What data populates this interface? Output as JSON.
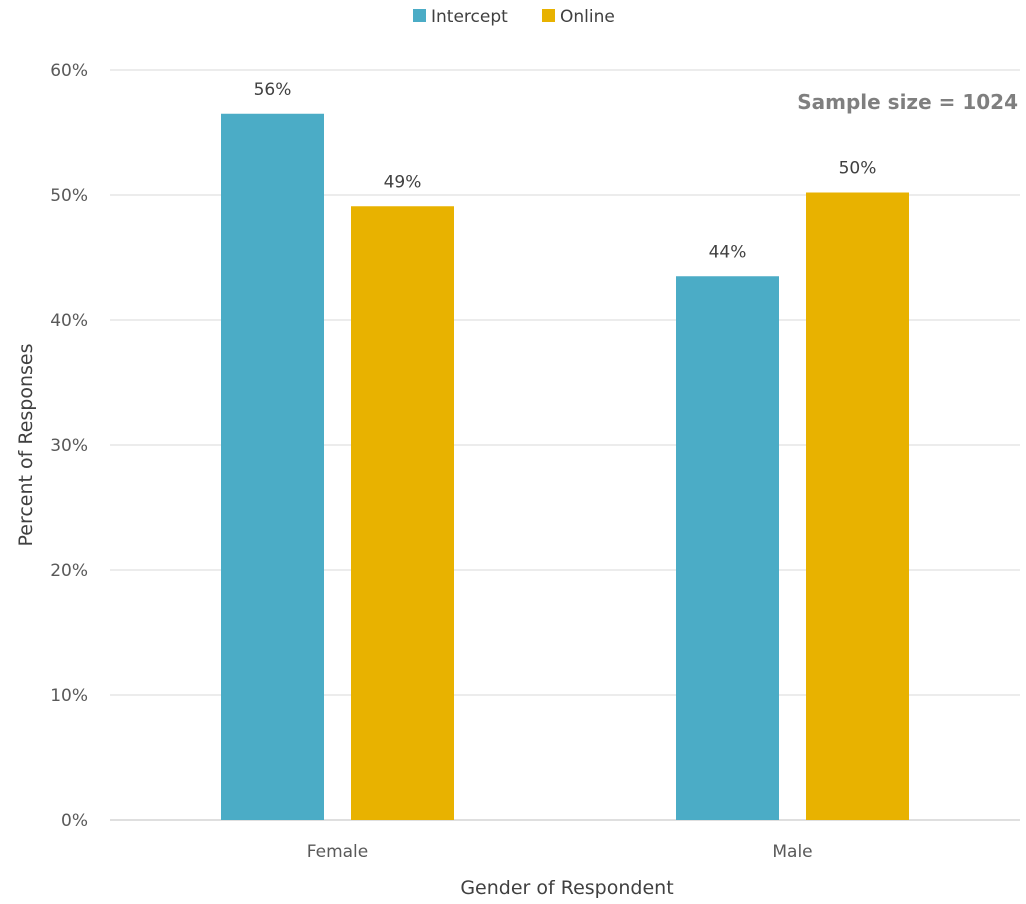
{
  "chart_data": {
    "type": "bar",
    "categories": [
      "Female",
      "Male"
    ],
    "series": [
      {
        "name": "Intercept",
        "values": [
          56.5,
          43.5
        ],
        "labels": [
          "56%",
          "44%"
        ],
        "color": "#4bacc6"
      },
      {
        "name": "Online",
        "values": [
          49.1,
          50.2
        ],
        "labels": [
          "49%",
          "50%"
        ],
        "color": "#e8b200"
      }
    ],
    "title": "",
    "xlabel": "Gender of Respondent",
    "ylabel": "Percent of Responses",
    "ylim": [
      0,
      60
    ],
    "yticks": [
      0,
      10,
      20,
      30,
      40,
      50,
      60
    ],
    "ytick_labels": [
      "0%",
      "10%",
      "20%",
      "30%",
      "40%",
      "50%",
      "60%"
    ],
    "grid": true,
    "legend_position": "top-center",
    "annotation": "Sample size = 1024"
  }
}
